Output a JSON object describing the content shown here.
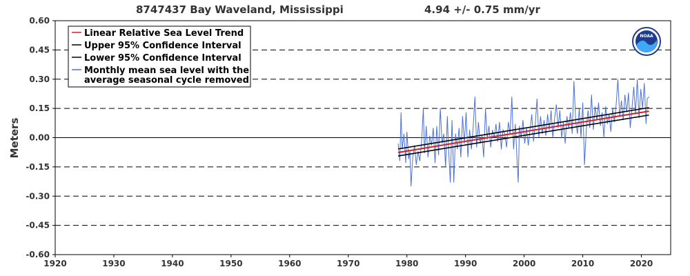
{
  "chart_data": {
    "type": "line",
    "title": "8747437 Bay Waveland, Mississippi",
    "trend_text": "4.94 +/-  0.75 mm/yr",
    "ylabel": "Meters",
    "xlim": [
      1920,
      2025
    ],
    "ylim": [
      -0.6,
      0.6
    ],
    "x_ticks": [
      1920,
      1930,
      1940,
      1950,
      1960,
      1970,
      1980,
      1990,
      2000,
      2010,
      2020
    ],
    "y_ticks": [
      "0.60",
      "0.45",
      "0.30",
      "0.15",
      "0.00",
      "-0.15",
      "-0.30",
      "-0.45",
      "-0.60"
    ],
    "y_tick_values": [
      0.6,
      0.45,
      0.3,
      0.15,
      0.0,
      -0.15,
      -0.3,
      -0.45,
      -0.6
    ],
    "grid": "dashed horizontal",
    "legend_position": "top-left",
    "logo": "noaa",
    "series": [
      {
        "name": "Linear Relative Sea Level Trend",
        "color": "#cc2222",
        "style": "solid",
        "x": [
          1978.5,
          2021.3
        ],
        "y": [
          -0.076,
          0.136
        ]
      },
      {
        "name": "Upper 95% Confidence Interval",
        "color": "#000000",
        "style": "solid",
        "x": [
          1978.5,
          2021.3
        ],
        "y": [
          -0.058,
          0.154
        ]
      },
      {
        "name": "Lower 95% Confidence Interval",
        "color": "#000000",
        "style": "solid",
        "x": [
          1978.5,
          2021.3
        ],
        "y": [
          -0.094,
          0.116
        ]
      },
      {
        "name": "Monthly mean sea level with the average seasonal cycle removed",
        "legend_lines": [
          "Monthly mean sea level with the",
          "average seasonal cycle removed"
        ],
        "color": "#4a6fd8",
        "style": "solid",
        "points": [
          [
            1978.5,
            -0.03
          ],
          [
            1978.8,
            -0.12
          ],
          [
            1979.0,
            0.13
          ],
          [
            1979.2,
            -0.06
          ],
          [
            1979.5,
            0.02
          ],
          [
            1979.8,
            -0.13
          ],
          [
            1980.0,
            0.03
          ],
          [
            1980.3,
            -0.11
          ],
          [
            1980.5,
            -0.07
          ],
          [
            1980.7,
            -0.25
          ],
          [
            1981.0,
            -0.1
          ],
          [
            1981.3,
            -0.04
          ],
          [
            1981.6,
            -0.14
          ],
          [
            1981.9,
            -0.07
          ],
          [
            1982.2,
            -0.12
          ],
          [
            1982.5,
            -0.02
          ],
          [
            1982.8,
            0.15
          ],
          [
            1983.0,
            -0.08
          ],
          [
            1983.3,
            0.06
          ],
          [
            1983.6,
            -0.1
          ],
          [
            1983.9,
            0.01
          ],
          [
            1984.2,
            -0.04
          ],
          [
            1984.5,
            0.05
          ],
          [
            1984.8,
            -0.13
          ],
          [
            1985.1,
            0.06
          ],
          [
            1985.4,
            -0.09
          ],
          [
            1985.7,
            0.15
          ],
          [
            1986.0,
            -0.03
          ],
          [
            1986.3,
            0.02
          ],
          [
            1986.6,
            -0.15
          ],
          [
            1986.9,
            0.11
          ],
          [
            1987.1,
            -0.05
          ],
          [
            1987.4,
            -0.23
          ],
          [
            1987.7,
            0.09
          ],
          [
            1988.0,
            -0.23
          ],
          [
            1988.3,
            0.02
          ],
          [
            1988.6,
            -0.06
          ],
          [
            1988.9,
            0.05
          ],
          [
            1989.2,
            -0.1
          ],
          [
            1989.5,
            0.11
          ],
          [
            1989.8,
            -0.03
          ],
          [
            1990.1,
            0.13
          ],
          [
            1990.4,
            -0.1
          ],
          [
            1990.7,
            0.04
          ],
          [
            1991.0,
            -0.06
          ],
          [
            1991.3,
            0.05
          ],
          [
            1991.6,
            0.21
          ],
          [
            1991.9,
            -0.05
          ],
          [
            1992.2,
            0.08
          ],
          [
            1992.5,
            -0.03
          ],
          [
            1992.8,
            0.01
          ],
          [
            1993.1,
            -0.1
          ],
          [
            1993.4,
            0.15
          ],
          [
            1993.7,
            -0.01
          ],
          [
            1994.0,
            0.06
          ],
          [
            1994.3,
            -0.05
          ],
          [
            1994.6,
            0.04
          ],
          [
            1994.9,
            0.0
          ],
          [
            1995.2,
            0.07
          ],
          [
            1995.5,
            -0.02
          ],
          [
            1995.8,
            0.08
          ],
          [
            1996.1,
            -0.06
          ],
          [
            1996.4,
            0.04
          ],
          [
            1996.7,
            0.02
          ],
          [
            1997.0,
            -0.05
          ],
          [
            1997.3,
            0.08
          ],
          [
            1997.6,
            0.02
          ],
          [
            1997.9,
            0.21
          ],
          [
            1998.2,
            -0.06
          ],
          [
            1998.5,
            0.07
          ],
          [
            1998.8,
            -0.12
          ],
          [
            1999.0,
            -0.23
          ],
          [
            1999.2,
            0.06
          ],
          [
            1999.5,
            0.0
          ],
          [
            1999.8,
            0.09
          ],
          [
            2000.1,
            -0.03
          ],
          [
            2000.4,
            0.05
          ],
          [
            2000.7,
            -0.04
          ],
          [
            2001.0,
            0.04
          ],
          [
            2001.3,
            0.12
          ],
          [
            2001.6,
            -0.02
          ],
          [
            2001.9,
            0.07
          ],
          [
            2002.2,
            0.2
          ],
          [
            2002.5,
            0.0
          ],
          [
            2002.8,
            0.11
          ],
          [
            2003.1,
            0.02
          ],
          [
            2003.4,
            0.09
          ],
          [
            2003.7,
            0.01
          ],
          [
            2004.0,
            0.12
          ],
          [
            2004.3,
            0.04
          ],
          [
            2004.6,
            0.14
          ],
          [
            2004.9,
            0.0
          ],
          [
            2005.2,
            0.1
          ],
          [
            2005.5,
            0.17
          ],
          [
            2005.8,
            0.05
          ],
          [
            2006.1,
            0.14
          ],
          [
            2006.4,
            0.0
          ],
          [
            2006.7,
            0.08
          ],
          [
            2007.0,
            -0.03
          ],
          [
            2007.3,
            0.11
          ],
          [
            2007.6,
            0.05
          ],
          [
            2007.9,
            0.13
          ],
          [
            2008.2,
            0.02
          ],
          [
            2008.5,
            0.29
          ],
          [
            2008.8,
            0.08
          ],
          [
            2009.1,
            0.02
          ],
          [
            2009.4,
            0.15
          ],
          [
            2009.7,
            0.0
          ],
          [
            2010.0,
            0.18
          ],
          [
            2010.3,
            -0.14
          ],
          [
            2010.6,
            0.04
          ],
          [
            2010.9,
            0.14
          ],
          [
            2011.2,
            0.05
          ],
          [
            2011.5,
            0.22
          ],
          [
            2011.8,
            0.04
          ],
          [
            2012.1,
            0.16
          ],
          [
            2012.4,
            0.09
          ],
          [
            2012.7,
            0.18
          ],
          [
            2013.0,
            0.06
          ],
          [
            2013.3,
            0.13
          ],
          [
            2013.6,
            0.0
          ],
          [
            2013.9,
            0.16
          ],
          [
            2014.2,
            0.07
          ],
          [
            2014.5,
            0.12
          ],
          [
            2014.8,
            0.03
          ],
          [
            2015.1,
            0.15
          ],
          [
            2015.4,
            0.08
          ],
          [
            2015.7,
            0.17
          ],
          [
            2016.0,
            0.3
          ],
          [
            2016.3,
            0.11
          ],
          [
            2016.6,
            0.19
          ],
          [
            2016.9,
            0.09
          ],
          [
            2017.2,
            0.22
          ],
          [
            2017.5,
            0.13
          ],
          [
            2017.8,
            0.23
          ],
          [
            2018.1,
            0.05
          ],
          [
            2018.4,
            0.15
          ],
          [
            2018.7,
            0.26
          ],
          [
            2019.0,
            0.12
          ],
          [
            2019.3,
            0.3
          ],
          [
            2019.6,
            0.1
          ],
          [
            2019.9,
            0.25
          ],
          [
            2020.2,
            0.15
          ],
          [
            2020.5,
            0.28
          ],
          [
            2020.8,
            0.07
          ],
          [
            2021.0,
            0.2
          ],
          [
            2021.3,
            0.21
          ]
        ]
      }
    ]
  }
}
